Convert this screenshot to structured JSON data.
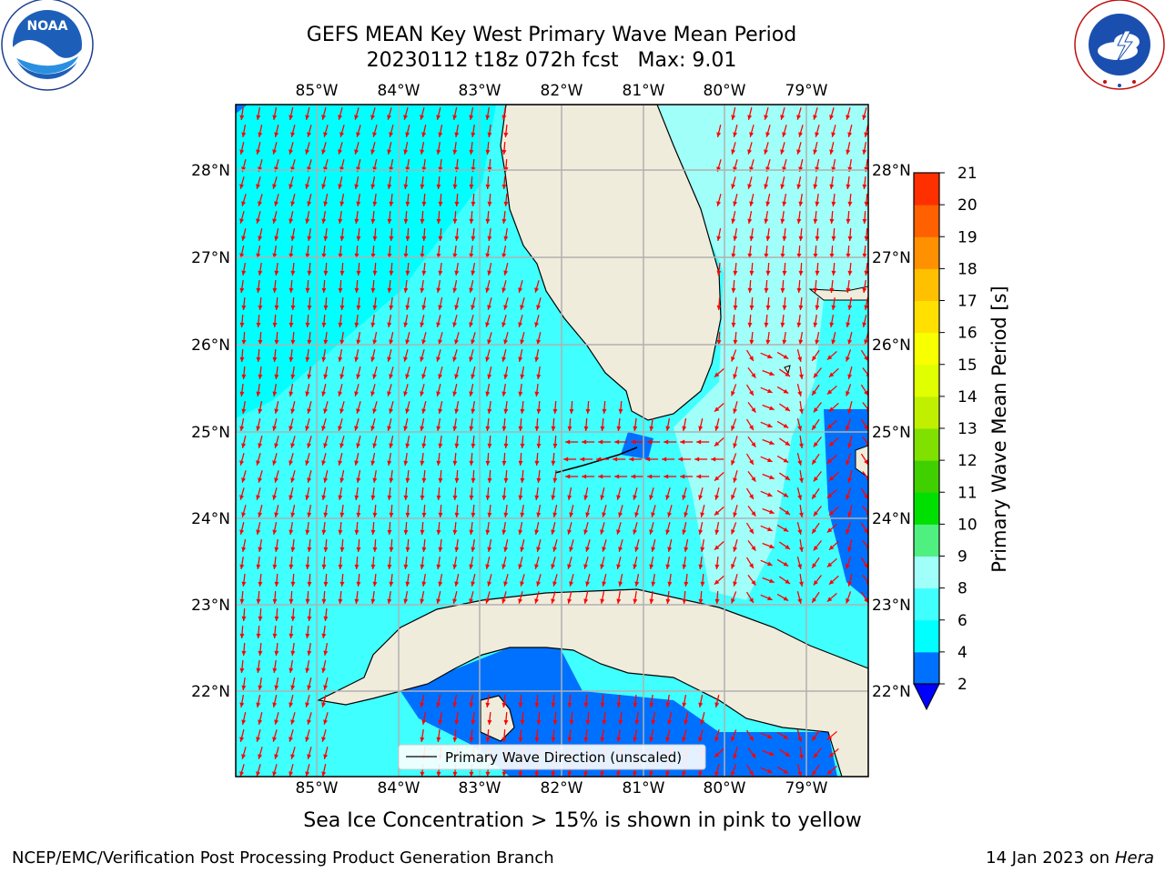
{
  "title": {
    "line1": "GEFS MEAN Key West Primary Wave Mean Period",
    "line2": "20230112 t18z 072h fcst   Max: 9.01"
  },
  "logos": {
    "left": "NOAA",
    "left_ring": "NATIONAL OCEANIC AND ATMOSPHERIC ADMINISTRATION · U.S. DEPARTMENT OF COMMERCE",
    "right_ring": "NATIONAL WEATHER SERVICE"
  },
  "map": {
    "lon_labels": [
      "85°W",
      "84°W",
      "83°W",
      "82°W",
      "81°W",
      "80°W",
      "79°W"
    ],
    "lat_labels": [
      "28°N",
      "27°N",
      "26°N",
      "25°N",
      "24°N",
      "23°N",
      "22°N"
    ],
    "legend_text": "Primary Wave Direction (unscaled)",
    "colors": {
      "land": "#efecdc",
      "grid": "#b0b0b0",
      "arrow": "#ff0000",
      "coast": "#000000"
    }
  },
  "colorbar": {
    "label": "Primary Wave Mean Period [s]",
    "ticks": [
      "2",
      "4",
      "6",
      "8",
      "9",
      "10",
      "11",
      "12",
      "13",
      "14",
      "15",
      "16",
      "17",
      "18",
      "19",
      "20",
      "21"
    ],
    "colors": [
      "#0070ff",
      "#00ffff",
      "#40ffff",
      "#a0fff8",
      "#50f080",
      "#00e000",
      "#40d000",
      "#80e000",
      "#c0f000",
      "#e0ff00",
      "#f8ff00",
      "#ffe000",
      "#ffc000",
      "#ff9000",
      "#ff6000",
      "#ff3000",
      "#ff0000"
    ],
    "under_color": "#0000ff"
  },
  "footer": {
    "note": "Sea Ice Concentration > 15% is shown in pink to yellow",
    "left": "NCEP/EMC/Verification Post Processing Product Generation Branch",
    "right_prefix": "14 Jan 2023 on ",
    "right_host": "Hera"
  }
}
